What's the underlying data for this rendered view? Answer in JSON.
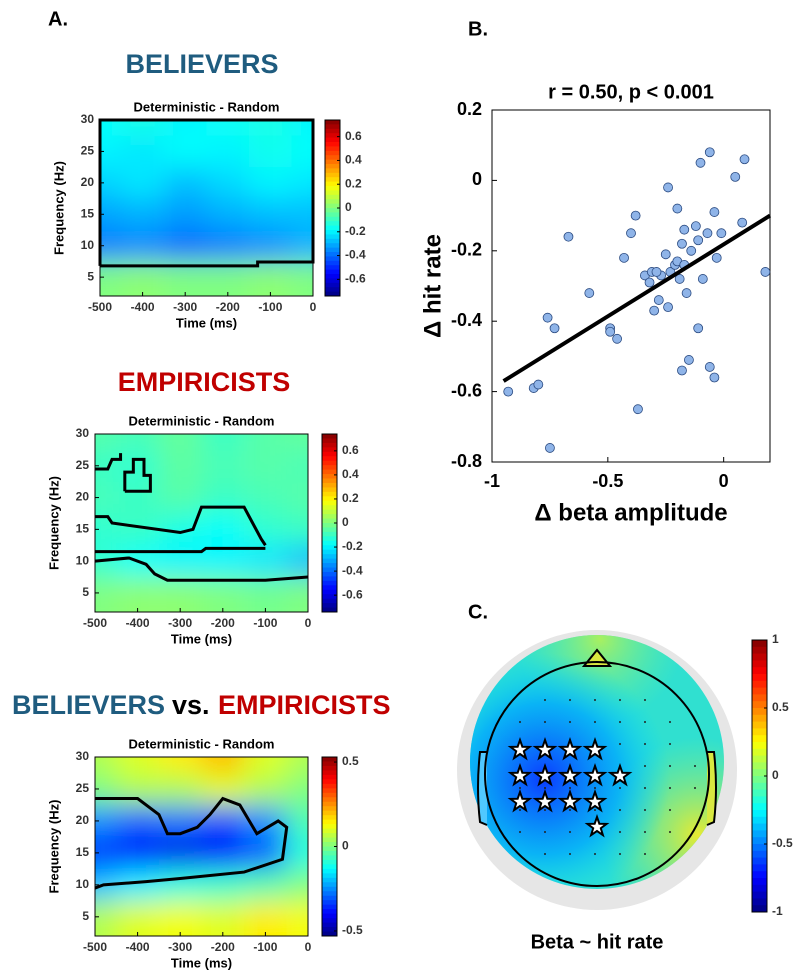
{
  "figure": {
    "panel_a": "A.",
    "panel_b": "B.",
    "panel_c": "C.",
    "title_believers": "BELIEVERS",
    "title_empiricists": "EMPIRICISTS",
    "title_compare_left": "BELIEVERS",
    "title_compare_mid": "vs.",
    "title_compare_right": "EMPIRICISTS"
  },
  "chart_data": [
    {
      "type": "heatmap",
      "title": "Deterministic - Random",
      "x_label": "Time (ms)",
      "y_label": "Frequency (Hz)",
      "x": [
        -500,
        -400,
        -300,
        -200,
        -100,
        0
      ],
      "y": [
        5,
        10,
        15,
        20,
        25,
        30
      ],
      "z": [
        [
          0.0,
          0.02,
          0.0,
          0.0,
          0.02,
          0.0
        ],
        [
          -0.38,
          -0.36,
          -0.4,
          -0.38,
          -0.35,
          -0.3
        ],
        [
          -0.32,
          -0.3,
          -0.33,
          -0.3,
          -0.28,
          -0.28
        ],
        [
          -0.25,
          -0.22,
          -0.28,
          -0.24,
          -0.2,
          -0.22
        ],
        [
          -0.2,
          -0.22,
          -0.18,
          -0.2,
          -0.16,
          -0.18
        ],
        [
          -0.18,
          -0.15,
          -0.2,
          -0.17,
          -0.15,
          -0.2
        ]
      ],
      "xlim": [
        -500,
        0
      ],
      "ylim": [
        2,
        30
      ],
      "xticks": [
        -500,
        -400,
        -300,
        -200,
        -100,
        0
      ],
      "yticks": [
        5,
        10,
        15,
        20,
        25,
        30
      ],
      "clim": [
        -0.74,
        0.74
      ],
      "cticks": [
        -0.6,
        -0.4,
        -0.2,
        0,
        0.2,
        0.4,
        0.6
      ],
      "contours": [
        {
          "x": [
            -500,
            -500,
            0,
            0,
            -130,
            -130,
            -500
          ],
          "y": [
            6.8,
            30,
            30,
            7.4,
            7.4,
            6.8,
            6.8
          ]
        }
      ]
    },
    {
      "type": "heatmap",
      "title": "Deterministic - Random",
      "x_label": "Time (ms)",
      "y_label": "Frequency (Hz)",
      "x": [
        -500,
        -400,
        -300,
        -200,
        -100,
        0
      ],
      "y": [
        5,
        10,
        15,
        20,
        25,
        30
      ],
      "z": [
        [
          0.0,
          0.02,
          0.02,
          0.0,
          -0.02,
          0.0
        ],
        [
          -0.12,
          -0.18,
          -0.2,
          -0.2,
          -0.22,
          -0.28
        ],
        [
          -0.12,
          -0.1,
          -0.15,
          -0.18,
          -0.12,
          -0.1
        ],
        [
          -0.08,
          -0.1,
          -0.06,
          -0.1,
          -0.08,
          -0.06
        ],
        [
          -0.1,
          -0.12,
          -0.05,
          -0.08,
          -0.06,
          -0.08
        ],
        [
          -0.06,
          -0.08,
          -0.04,
          -0.1,
          -0.06,
          -0.04
        ]
      ],
      "xlim": [
        -500,
        0
      ],
      "ylim": [
        2,
        30
      ],
      "xticks": [
        -500,
        -400,
        -300,
        -200,
        -100,
        0
      ],
      "yticks": [
        5,
        10,
        15,
        20,
        25,
        30
      ],
      "clim": [
        -0.74,
        0.74
      ],
      "cticks": [
        -0.6,
        -0.4,
        -0.2,
        0,
        0.2,
        0.4,
        0.6
      ],
      "contours": [
        {
          "x": [
            -430,
            -430,
            -410,
            -410,
            -385,
            -385,
            -370,
            -370,
            -430
          ],
          "y": [
            21,
            24,
            24,
            26,
            26,
            23.5,
            23.5,
            21,
            21
          ]
        },
        {
          "x": [
            -500,
            -470,
            -460,
            -440,
            -440
          ],
          "y": [
            24.5,
            24.5,
            26,
            26,
            27
          ]
        },
        {
          "x": [
            -500,
            -470,
            -460,
            -300,
            -270,
            -250,
            -150,
            -130,
            -110,
            -100
          ],
          "y": [
            17,
            17,
            16,
            14.5,
            15,
            18.5,
            18.5,
            16,
            13.5,
            12.5
          ]
        },
        {
          "x": [
            -500,
            -250,
            -240,
            -100
          ],
          "y": [
            11.5,
            11.5,
            12,
            12
          ]
        },
        {
          "x": [
            -500,
            -420,
            -380,
            -360,
            -330,
            -100,
            0
          ],
          "y": [
            10,
            10.5,
            9.5,
            8,
            7,
            7,
            7.5
          ]
        }
      ]
    },
    {
      "type": "heatmap",
      "title": "Deterministic - Random",
      "x_label": "Time (ms)",
      "y_label": "Frequency (Hz)",
      "x": [
        -500,
        -400,
        -300,
        -200,
        -100,
        0
      ],
      "y": [
        5,
        10,
        15,
        20,
        25,
        30
      ],
      "z": [
        [
          0.05,
          0.1,
          0.12,
          0.1,
          0.15,
          0.12
        ],
        [
          -0.2,
          -0.15,
          -0.1,
          -0.08,
          -0.05,
          0.0
        ],
        [
          -0.35,
          -0.4,
          -0.42,
          -0.4,
          -0.3,
          -0.1
        ],
        [
          -0.25,
          -0.3,
          -0.28,
          -0.32,
          -0.25,
          -0.05
        ],
        [
          0.0,
          0.05,
          0.05,
          0.1,
          0.05,
          0.0
        ],
        [
          0.05,
          0.1,
          0.15,
          0.2,
          0.1,
          0.05
        ]
      ],
      "xlim": [
        -500,
        0
      ],
      "ylim": [
        2,
        30
      ],
      "xticks": [
        -500,
        -400,
        -300,
        -200,
        -100,
        0
      ],
      "yticks": [
        5,
        10,
        15,
        20,
        25,
        30
      ],
      "clim": [
        -0.53,
        0.53
      ],
      "cticks": [
        -0.5,
        0,
        0.5
      ],
      "contours": [
        {
          "x": [
            -500,
            -480,
            -380,
            -300,
            -150,
            -60,
            -50,
            -70,
            -120,
            -160,
            -200,
            -230,
            -260,
            -300,
            -330,
            -350,
            -400,
            -500
          ],
          "y": [
            9.5,
            10,
            10.5,
            11,
            12,
            14,
            19,
            20,
            18,
            22.5,
            23.5,
            21,
            19,
            18,
            18,
            21,
            23.5,
            23.5
          ]
        }
      ]
    },
    {
      "type": "scatter",
      "title": "r = 0.50, p < 0.001",
      "x_label": "Δ beta amplitude",
      "y_label": "Δ hit rate",
      "x": [
        -0.93,
        -0.82,
        -0.8,
        -0.76,
        -0.73,
        -0.75,
        -0.67,
        -0.58,
        -0.49,
        -0.49,
        -0.46,
        -0.43,
        -0.4,
        -0.38,
        -0.37,
        -0.34,
        -0.32,
        -0.31,
        -0.3,
        -0.28,
        -0.27,
        -0.25,
        -0.24,
        -0.24,
        -0.23,
        -0.21,
        -0.2,
        -0.2,
        -0.19,
        -0.18,
        -0.18,
        -0.17,
        -0.17,
        -0.16,
        -0.15,
        -0.14,
        -0.12,
        -0.11,
        -0.11,
        -0.1,
        -0.09,
        -0.07,
        -0.06,
        -0.06,
        -0.04,
        -0.04,
        -0.03,
        -0.01,
        0.05,
        0.08,
        0.09,
        0.18,
        -0.29
      ],
      "y": [
        -0.6,
        -0.59,
        -0.58,
        -0.39,
        -0.42,
        -0.76,
        -0.16,
        -0.32,
        -0.42,
        -0.43,
        -0.45,
        -0.22,
        -0.15,
        -0.1,
        -0.65,
        -0.27,
        -0.29,
        -0.26,
        -0.37,
        -0.34,
        -0.27,
        -0.21,
        -0.02,
        -0.36,
        -0.26,
        -0.24,
        -0.08,
        -0.23,
        -0.28,
        -0.18,
        -0.54,
        -0.14,
        -0.24,
        -0.32,
        -0.51,
        -0.2,
        -0.13,
        -0.42,
        -0.17,
        0.05,
        -0.28,
        -0.15,
        -0.53,
        0.08,
        -0.09,
        -0.56,
        -0.22,
        -0.15,
        0.01,
        -0.12,
        0.06,
        -0.26,
        -0.26
      ],
      "color": "#8fb4e8",
      "fit": {
        "x": [
          -0.95,
          0.2
        ],
        "y": [
          -0.57,
          -0.1
        ]
      },
      "xlim": [
        -1,
        0.2
      ],
      "ylim": [
        -0.8,
        0.2
      ],
      "xticks": [
        -1,
        -0.5,
        0
      ],
      "yticks": [
        -0.8,
        -0.6,
        -0.4,
        -0.2,
        0,
        0.2
      ]
    },
    {
      "type": "topoplot",
      "caption": "Beta ~ hit rate",
      "clim": [
        -1,
        1
      ],
      "cticks": [
        -1,
        -0.5,
        0,
        0.5,
        1
      ]
    }
  ]
}
